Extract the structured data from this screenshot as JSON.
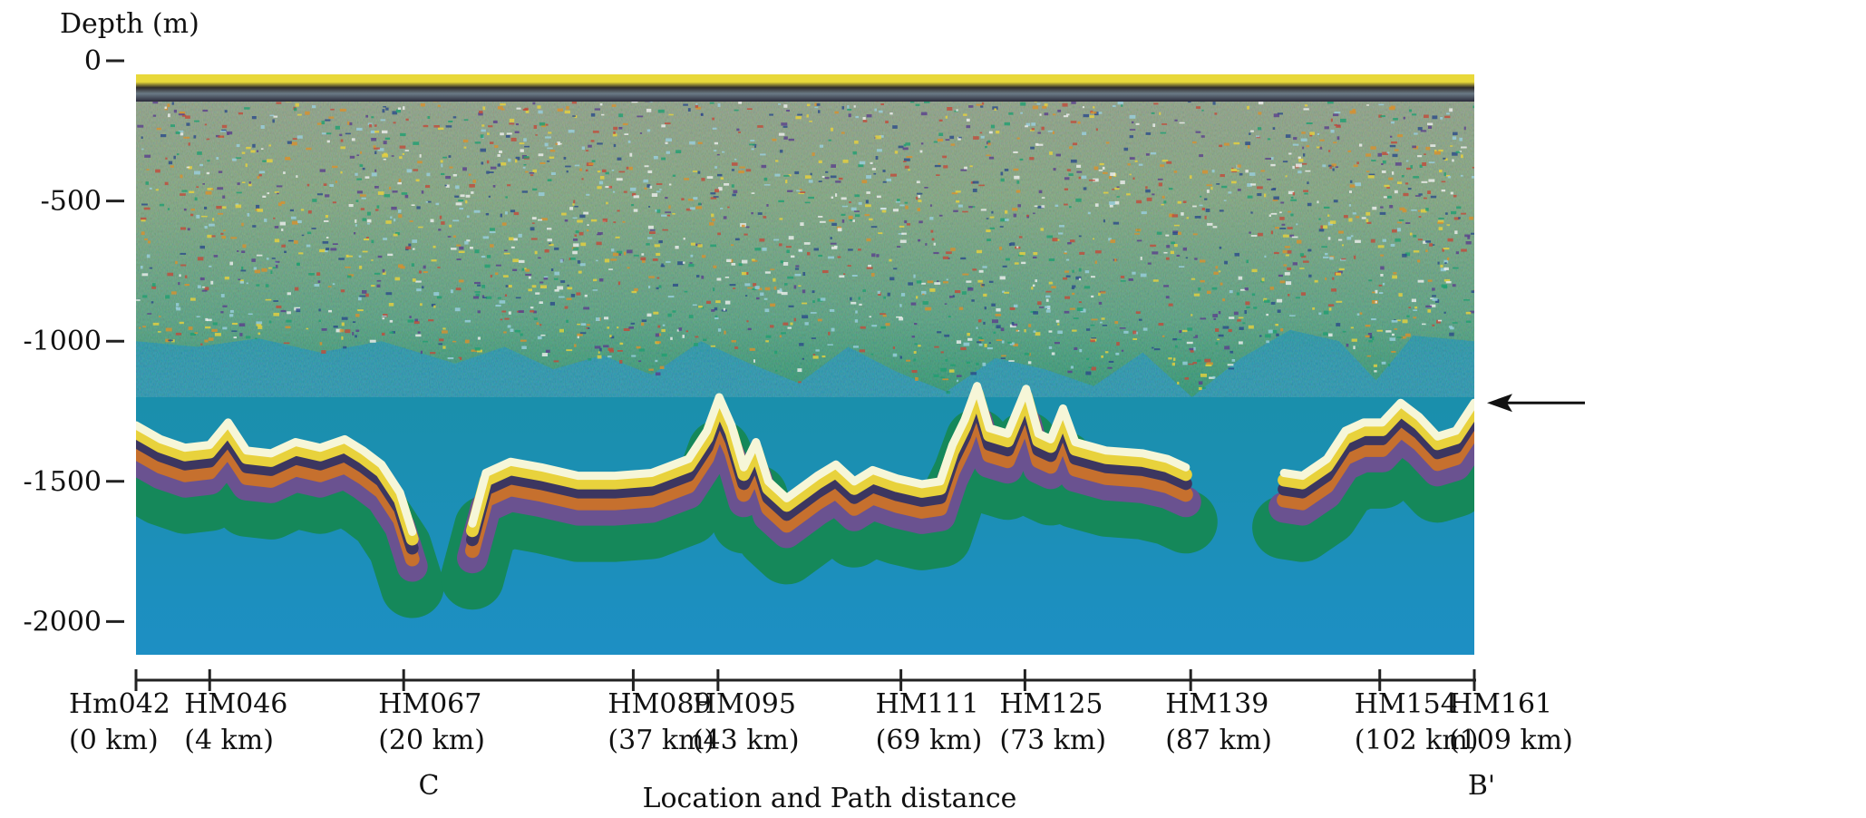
{
  "figure": {
    "y_axis_title": "Depth (m)",
    "x_axis_title": "Location and Path distance",
    "y_ticks": [
      {
        "value": 0,
        "label": "0"
      },
      {
        "value": -500,
        "label": "-500"
      },
      {
        "value": -1000,
        "label": "-1000"
      },
      {
        "value": -1500,
        "label": "-1500"
      },
      {
        "value": -2000,
        "label": "-2000"
      }
    ],
    "y_range": [
      0,
      -2150
    ],
    "x_range_km": [
      0,
      109
    ],
    "stations": [
      {
        "name": "Hm042",
        "distance": "(0 km)",
        "km": 0
      },
      {
        "name": "HM046",
        "distance": "(4 km)",
        "km": 6
      },
      {
        "name": "HM067",
        "distance": "(20 km)",
        "km": 21.8
      },
      {
        "name": "HM089",
        "distance": "(37 km)",
        "km": 40.5
      },
      {
        "name": "HM095",
        "distance": "(43 km)",
        "km": 47.4
      },
      {
        "name": "HM111",
        "distance": "(69 km)",
        "km": 62.3
      },
      {
        "name": "HM125",
        "distance": "(73 km)",
        "km": 72.4
      },
      {
        "name": "HM139",
        "distance": "(87 km)",
        "km": 85.9
      },
      {
        "name": "HM154",
        "distance": "(102 km)",
        "km": 101.3
      },
      {
        "name": "HM161",
        "distance": "(109 km)",
        "km": 109
      }
    ],
    "profile_start_label": "C",
    "profile_end_label": "B'",
    "arrow_depth_m": -1220,
    "colors": {
      "water_green": "#0f8e5a",
      "water_blue": "#1d8fc4",
      "reflector_white": "#f4f4d0",
      "reflector_yellow": "#e8d23c",
      "noise_orange": "#d9902c",
      "noise_purple": "#5a3e8c"
    }
  }
}
